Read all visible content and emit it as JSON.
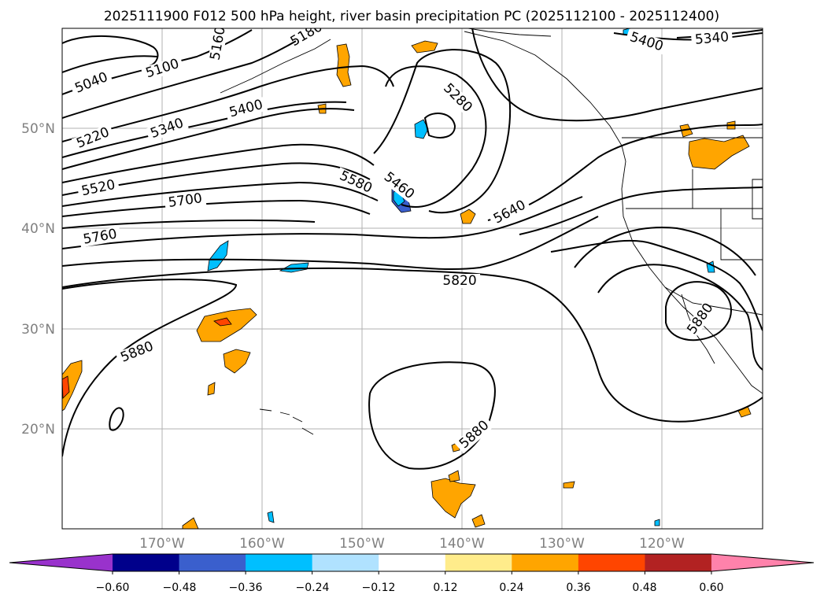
{
  "title": "2025111900 F012 500 hPa height, river basin precipitation PC (2025112100 - 2025112400)",
  "map": {
    "lon_range": [
      -180,
      -110
    ],
    "lat_range": [
      10,
      60
    ],
    "gridlines": true,
    "lat_labels": [
      "50°N",
      "40°N",
      "30°N",
      "20°N"
    ],
    "lon_labels": [
      "170°W",
      "160°W",
      "150°W",
      "140°W",
      "130°W",
      "120°W"
    ]
  },
  "contour_labels": [
    "5040",
    "5100",
    "5160",
    "5180",
    "5220",
    "5340",
    "5400",
    "5520",
    "5700",
    "5760",
    "5580",
    "5460",
    "5280",
    "5640",
    "5820",
    "5880",
    "5880",
    "5880",
    "5400",
    "5340"
  ],
  "colorbar": {
    "ticks": [
      "−0.60",
      "−0.48",
      "−0.36",
      "−0.24",
      "−0.12",
      "0.12",
      "0.24",
      "0.36",
      "0.48",
      "0.60"
    ],
    "colors": [
      "#9932cc",
      "#00008b",
      "#3a5fcd",
      "#00bfff",
      "#b0e2ff",
      "#ffffff",
      "#ffec8b",
      "#ffa500",
      "#ff4500",
      "#b22222",
      "#ff82ab"
    ]
  }
}
